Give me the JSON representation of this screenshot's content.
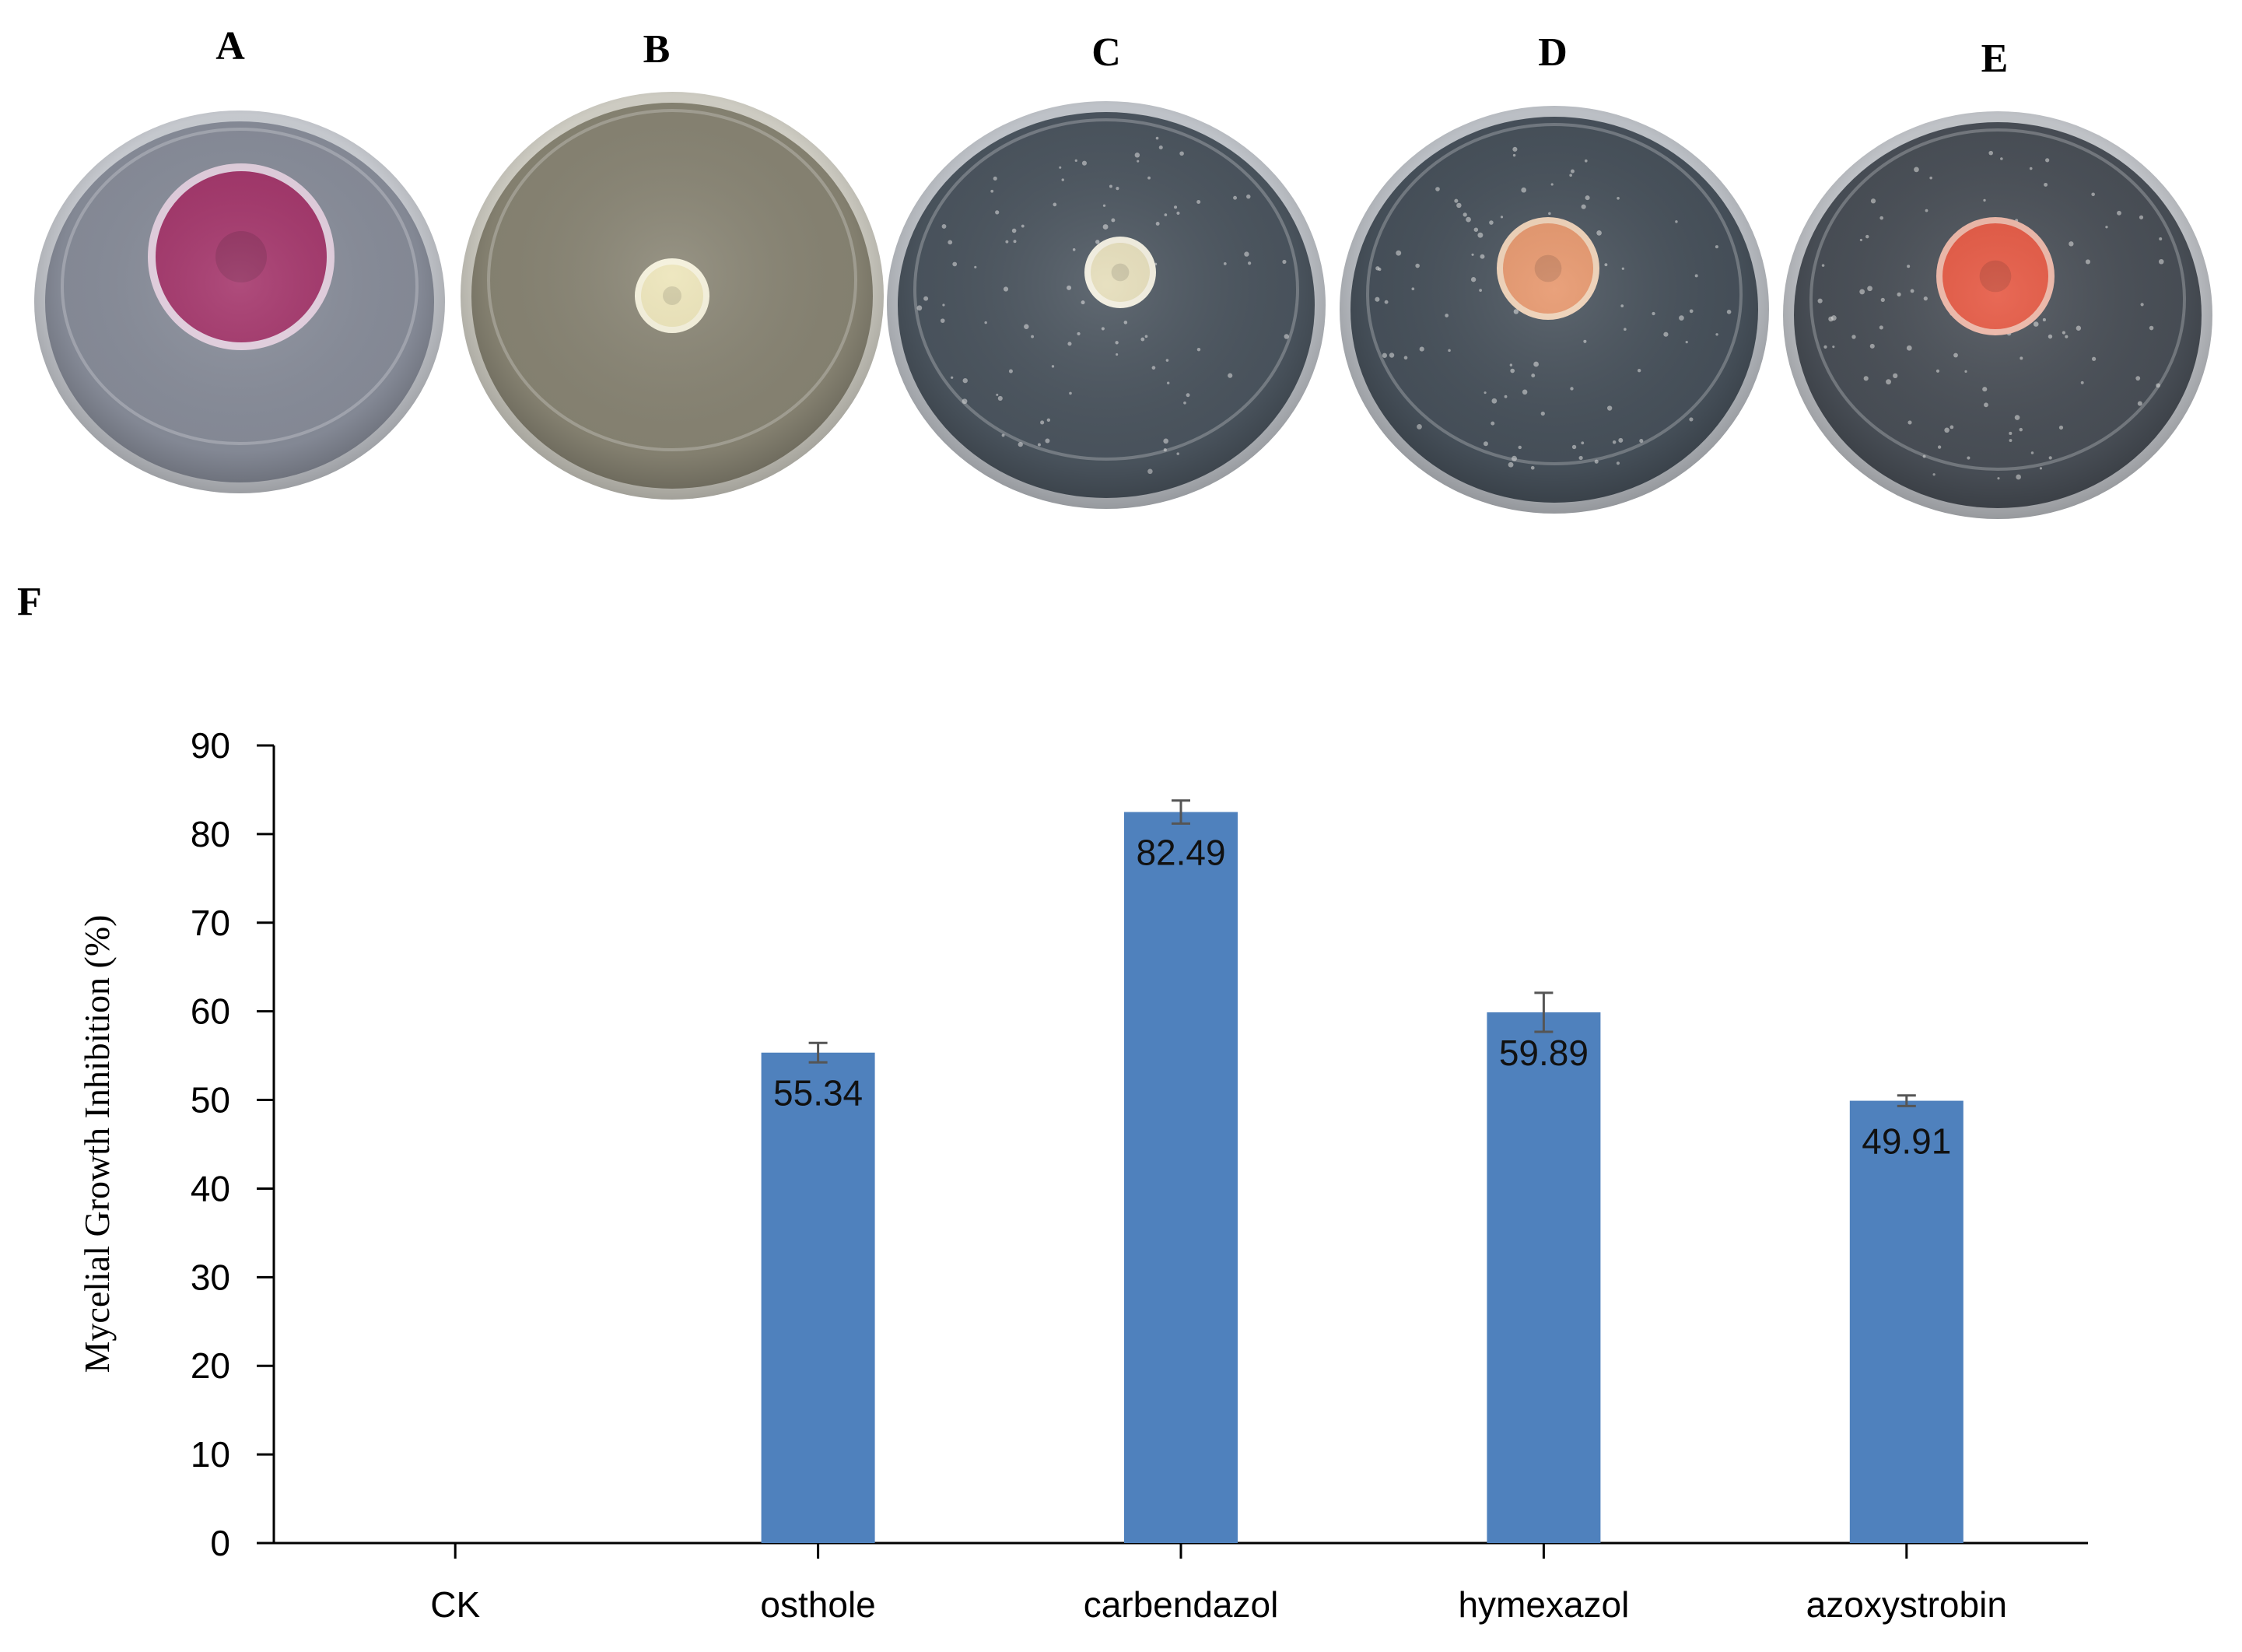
{
  "panels": [
    {
      "letter": "A",
      "dish": {
        "agar": "#8a8f9c",
        "rim": "#cfd2d8",
        "colony": "#a4346a",
        "colony_edge": "#e7d3e3"
      }
    },
    {
      "letter": "B",
      "dish": {
        "agar": "#8a8675",
        "rim": "#d8d6cc",
        "colony": "#ece4b8",
        "colony_edge": "#f6f2dc"
      }
    },
    {
      "letter": "C",
      "dish": {
        "agar": "#4c5660",
        "rim": "#c8ccd2",
        "colony": "#e4dcb8",
        "colony_edge": "#f3efe0"
      }
    },
    {
      "letter": "D",
      "dish": {
        "agar": "#48525c",
        "rim": "#c5c9cf",
        "colony": "#e6956a",
        "colony_edge": "#f1d3b8"
      }
    },
    {
      "letter": "E",
      "dish": {
        "agar": "#4a5058",
        "rim": "#c9ccd1",
        "colony": "#e5553f",
        "colony_edge": "#f0b8a8"
      }
    }
  ],
  "chart_panel_letter": "F",
  "chart_data": {
    "type": "bar",
    "categories": [
      "CK",
      "osthole",
      "carbendazol",
      "hymexazol",
      "azoxystrobin"
    ],
    "values": [
      0,
      55.34,
      82.49,
      59.89,
      49.91
    ],
    "value_labels": [
      "",
      "55.34",
      "82.49",
      "59.89",
      "49.91"
    ],
    "errors": [
      0,
      1.1,
      1.3,
      2.2,
      0.6
    ],
    "ylabel": "Mycelial Growth Inhibition (%)",
    "xlabel": "",
    "ylim": [
      0,
      90
    ],
    "yticks": [
      "0",
      "10",
      "20",
      "30",
      "40",
      "50",
      "60",
      "70",
      "80",
      "90"
    ],
    "grid": false,
    "bar_color": "#4f81bd",
    "error_color": "#555555"
  }
}
